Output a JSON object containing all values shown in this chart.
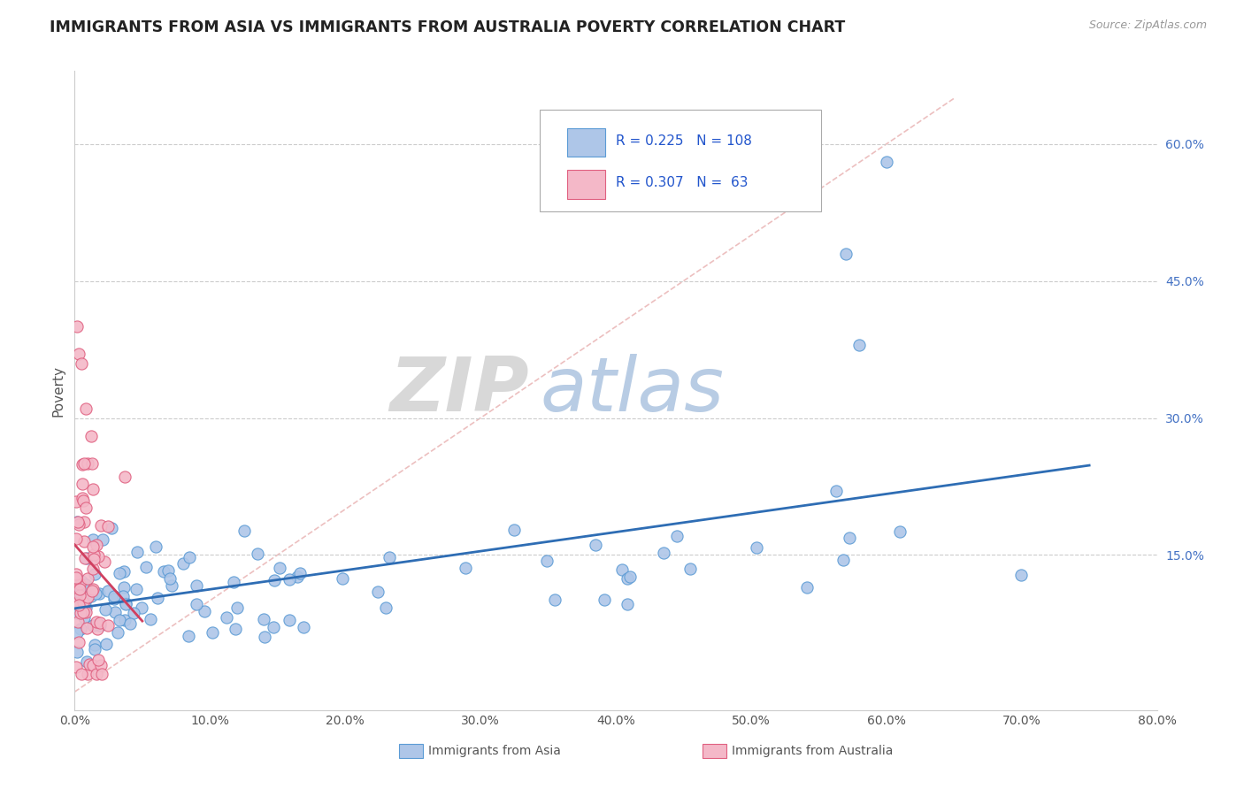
{
  "title": "IMMIGRANTS FROM ASIA VS IMMIGRANTS FROM AUSTRALIA POVERTY CORRELATION CHART",
  "source": "Source: ZipAtlas.com",
  "ylabel": "Poverty",
  "watermark_zip": "ZIP",
  "watermark_atlas": "atlas",
  "xlim": [
    0.0,
    0.8
  ],
  "ylim": [
    -0.02,
    0.68
  ],
  "xticks": [
    0.0,
    0.1,
    0.2,
    0.3,
    0.4,
    0.5,
    0.6,
    0.7,
    0.8
  ],
  "yticks_right": [
    0.15,
    0.3,
    0.45,
    0.6
  ],
  "ytick_labels_right": [
    "15.0%",
    "30.0%",
    "45.0%",
    "60.0%"
  ],
  "series_asia": {
    "name": "Immigrants from Asia",
    "face_color": "#aec6e8",
    "edge_color": "#5b9bd5",
    "line_color": "#2e6db4",
    "R": 0.225,
    "N": 108
  },
  "series_australia": {
    "name": "Immigrants from Australia",
    "face_color": "#f4b8c8",
    "edge_color": "#e06080",
    "line_color": "#d04060",
    "R": 0.307,
    "N": 63
  },
  "background_color": "#ffffff",
  "grid_color": "#cccccc",
  "ref_line_color": "#e8b0b0",
  "title_color": "#222222",
  "legend_text_color": "#2255cc",
  "legend_box_color": "#f0f0f0",
  "legend_edge_color": "#aaaaaa",
  "bottom_label_color": "#555555"
}
